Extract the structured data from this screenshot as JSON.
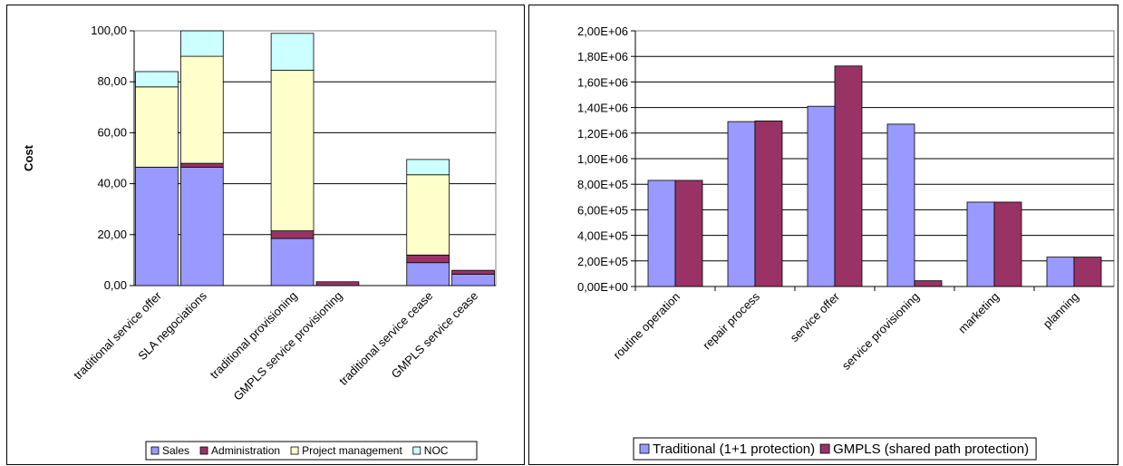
{
  "charts": [
    {
      "type": "bar",
      "stacked": true,
      "ylabel": "Cost",
      "xlabel": "",
      "ylim": [
        0,
        100
      ],
      "yticks": [
        "0,00",
        "20,00",
        "40,00",
        "60,00",
        "80,00",
        "100,00"
      ],
      "categories": [
        "traditional service offer",
        "SLA negociations",
        "",
        "traditional provisioning",
        "GMPLS service provisioning",
        "",
        "traditional service cease",
        "GMPLS service cease"
      ],
      "series": [
        {
          "name": "Sales",
          "color": "#9999ff",
          "values": [
            46.5,
            46.5,
            0,
            18.5,
            0,
            0,
            9,
            4.5
          ]
        },
        {
          "name": "Administration",
          "color": "#993366",
          "values": [
            0,
            1.5,
            0,
            3,
            1.5,
            0,
            3,
            1.5
          ]
        },
        {
          "name": "Project management",
          "color": "#ffffcc",
          "values": [
            31.5,
            42,
            0,
            63,
            0,
            0,
            31.5,
            0
          ]
        },
        {
          "name": "NOC",
          "color": "#ccffff",
          "values": [
            6,
            10,
            0,
            14.5,
            0,
            0,
            6,
            0
          ]
        }
      ],
      "grid": true,
      "legend_position": "bottom"
    },
    {
      "type": "bar",
      "stacked": false,
      "xlabel": "",
      "ylabel": "",
      "ylim": [
        0,
        2000000
      ],
      "yticks": [
        "0,00E+00",
        "2,00E+05",
        "4,00E+05",
        "6,00E+05",
        "8,00E+05",
        "1,00E+06",
        "1,20E+06",
        "1,40E+06",
        "1,60E+06",
        "1,80E+06",
        "2,00E+06"
      ],
      "categories": [
        "routine operation",
        "repair process",
        "service offer",
        "service provisioning",
        "marketing",
        "planning"
      ],
      "series": [
        {
          "name": "Traditional (1+1 protection)",
          "color": "#9999ff",
          "values": [
            830000,
            1290000,
            1410000,
            1270000,
            660000,
            230000
          ]
        },
        {
          "name": "GMPLS (shared path protection)",
          "color": "#993366",
          "values": [
            830000,
            1295000,
            1725000,
            45000,
            660000,
            230000
          ]
        }
      ],
      "grid": true,
      "legend_position": "bottom"
    }
  ]
}
